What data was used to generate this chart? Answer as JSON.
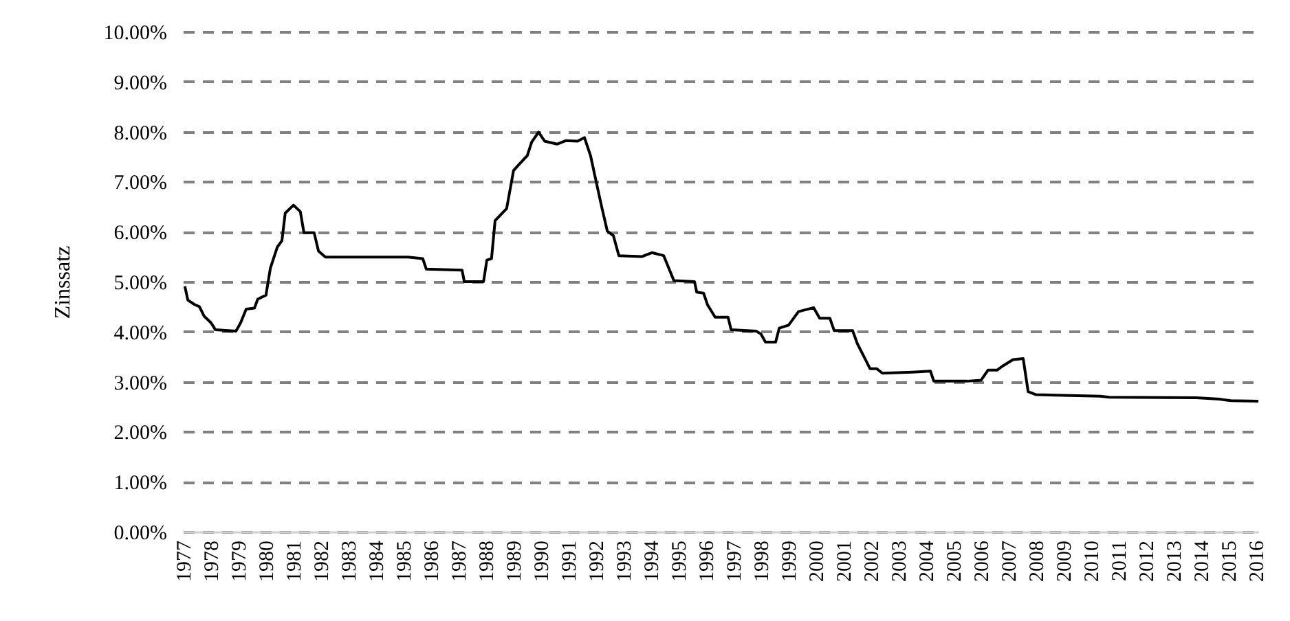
{
  "chart_data": {
    "type": "line",
    "ylabel": "Zinssatz",
    "color": "#000000",
    "grid": "y",
    "line_style": "solid",
    "marker": "none",
    "x": [
      1977.07,
      1977.18,
      1977.43,
      1977.6,
      1977.77,
      1978.02,
      1978.18,
      1978.93,
      1979.1,
      1979.3,
      1979.6,
      1979.72,
      1980.02,
      1980.18,
      1980.43,
      1980.6,
      1980.72,
      1981.02,
      1981.27,
      1981.4,
      1981.77,
      1981.93,
      1982.18,
      1985.18,
      1985.72,
      1985.85,
      1987.15,
      1987.23,
      1987.93,
      1988.05,
      1988.22,
      1988.35,
      1988.77,
      1989.02,
      1989.18,
      1989.52,
      1989.68,
      1989.93,
      1990.15,
      1990.6,
      1990.93,
      1991.35,
      1991.6,
      1991.82,
      1992.02,
      1992.22,
      1992.43,
      1992.65,
      1992.85,
      1993.68,
      1994.05,
      1994.48,
      1994.85,
      1995.6,
      1995.68,
      1995.93,
      1996.07,
      1996.35,
      1996.82,
      1996.93,
      1997.85,
      1998.02,
      1998.18,
      1998.55,
      1998.68,
      1999.02,
      1999.38,
      1999.93,
      2000.15,
      2000.52,
      2000.68,
      2001.35,
      2001.52,
      2001.77,
      2001.98,
      2002.22,
      2002.43,
      2003.52,
      2004.18,
      2004.3,
      2005.52,
      2006.02,
      2006.27,
      2006.6,
      2006.77,
      2007.18,
      2007.55,
      2007.73,
      2008.02,
      2010.35,
      2010.68,
      2013.85,
      2014.68,
      2015.1,
      2016.1
    ],
    "values": [
      4.91,
      4.63,
      4.54,
      4.5,
      4.31,
      4.18,
      4.04,
      4.01,
      4.18,
      4.45,
      4.47,
      4.65,
      4.73,
      5.27,
      5.69,
      5.82,
      6.37,
      6.53,
      6.4,
      5.98,
      5.98,
      5.61,
      5.49,
      5.49,
      5.46,
      5.25,
      5.23,
      5.0,
      5.0,
      5.43,
      5.46,
      6.22,
      6.46,
      7.22,
      7.32,
      7.52,
      7.79,
      7.99,
      7.81,
      7.75,
      7.82,
      7.81,
      7.88,
      7.52,
      7.01,
      6.51,
      6.01,
      5.92,
      5.52,
      5.5,
      5.58,
      5.52,
      5.02,
      5.0,
      4.79,
      4.77,
      4.54,
      4.29,
      4.29,
      4.04,
      4.01,
      3.95,
      3.79,
      3.79,
      4.07,
      4.13,
      4.4,
      4.48,
      4.27,
      4.27,
      4.02,
      4.02,
      3.76,
      3.49,
      3.26,
      3.26,
      3.17,
      3.19,
      3.21,
      3.01,
      3.01,
      3.03,
      3.23,
      3.23,
      3.3,
      3.44,
      3.46,
      2.8,
      2.74,
      2.71,
      2.69,
      2.68,
      2.65,
      2.62,
      2.61
    ],
    "xlim": [
      1977,
      2016.1
    ],
    "xticks": [
      1977,
      1978,
      1979,
      1980,
      1981,
      1982,
      1983,
      1984,
      1985,
      1986,
      1987,
      1988,
      1989,
      1990,
      1991,
      1992,
      1993,
      1994,
      1995,
      1996,
      1997,
      1998,
      1999,
      2000,
      2001,
      2002,
      2003,
      2004,
      2005,
      2006,
      2007,
      2008,
      2009,
      2010,
      2011,
      2012,
      2013,
      2014,
      2015,
      2016
    ],
    "ylim": [
      0,
      10
    ],
    "yticks": [
      {
        "value": 0,
        "label": "0.00%"
      },
      {
        "value": 1,
        "label": "1.00%"
      },
      {
        "value": 2,
        "label": "2.00%"
      },
      {
        "value": 3,
        "label": "3.00%"
      },
      {
        "value": 4,
        "label": "4.00%"
      },
      {
        "value": 5,
        "label": "5.00%"
      },
      {
        "value": 6,
        "label": "6.00%"
      },
      {
        "value": 7,
        "label": "7.00%"
      },
      {
        "value": 8,
        "label": "8.00%"
      },
      {
        "value": 9,
        "label": "9.00%"
      },
      {
        "value": 10,
        "label": "10.00%"
      }
    ]
  }
}
